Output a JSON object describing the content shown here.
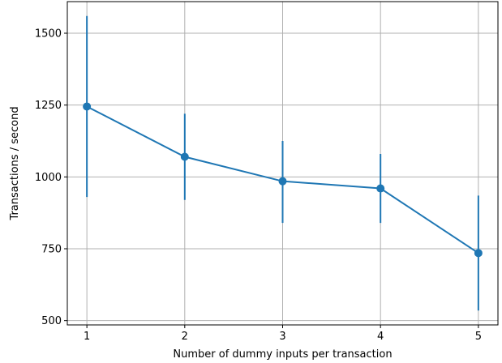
{
  "chart_data": {
    "type": "line",
    "title": "",
    "xlabel": "Number of dummy inputs per transaction",
    "ylabel": "Transactions / second",
    "xlim": [
      0.8,
      5.2
    ],
    "ylim": [
      485,
      1610
    ],
    "x_ticks": [
      1,
      2,
      3,
      4,
      5
    ],
    "x_tick_labels": [
      "1",
      "2",
      "3",
      "4",
      "5"
    ],
    "y_ticks": [
      500,
      750,
      1000,
      1250,
      1500
    ],
    "y_tick_labels": [
      "500",
      "750",
      "1000",
      "1250",
      "1500"
    ],
    "grid": true,
    "legend": "none",
    "series": [
      {
        "color": "#1f77b4",
        "x": [
          1,
          2,
          3,
          4,
          5
        ],
        "y": [
          1245,
          1070,
          985,
          960,
          735
        ],
        "error_low": [
          930,
          920,
          840,
          840,
          535
        ],
        "error_high": [
          1560,
          1220,
          1125,
          1080,
          935
        ]
      }
    ]
  }
}
